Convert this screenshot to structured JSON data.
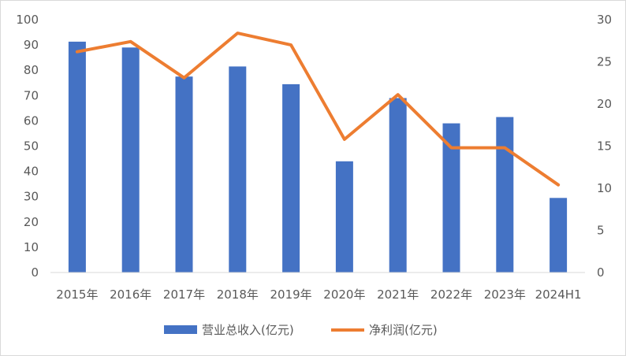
{
  "chart_data": {
    "type": "bar",
    "categories": [
      "2015年",
      "2016年",
      "2017年",
      "2018年",
      "2019年",
      "2020年",
      "2021年",
      "2022年",
      "2023年",
      "2024H1"
    ],
    "series": [
      {
        "name": "营业总收入(亿元)",
        "type": "bar",
        "axis": "left",
        "color": "#4472C4",
        "values": [
          91.3,
          89,
          77.5,
          81.5,
          74.5,
          44,
          69,
          59,
          61.5,
          29.5
        ]
      },
      {
        "name": "净利润(亿元)",
        "type": "line",
        "axis": "right",
        "color": "#ED7D31",
        "values": [
          26.2,
          27.4,
          23.1,
          28.4,
          27,
          15.8,
          21.1,
          14.8,
          14.8,
          10.4
        ]
      }
    ],
    "y_left": {
      "min": 0,
      "max": 100,
      "ticks": [
        "0",
        "10",
        "20",
        "30",
        "40",
        "50",
        "60",
        "70",
        "80",
        "90",
        "100"
      ]
    },
    "y_right": {
      "min": 0,
      "max": 30,
      "ticks": [
        "0",
        "5",
        "10",
        "15",
        "20",
        "25",
        "30"
      ]
    },
    "grid": false,
    "legend": "bottom"
  }
}
